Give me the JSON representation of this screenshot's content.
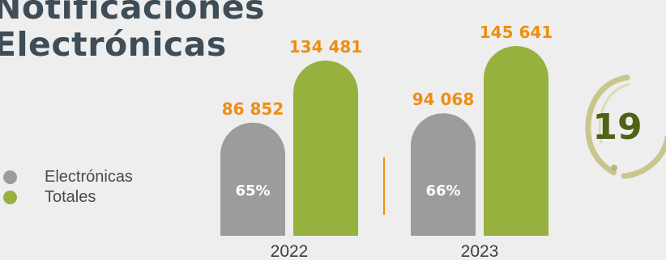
{
  "title": {
    "line1": "Notificaciones",
    "line2": "Electrónicas"
  },
  "colors": {
    "title": "#3e4d57",
    "electronicas": "#9d9c9d",
    "totales": "#97b13e",
    "value_label": "#ef8d12",
    "separator": "#ef8d12",
    "badge_ring": "#c9c58e",
    "badge_number": "#4f6316"
  },
  "legend": {
    "items": [
      {
        "label": "Electrónicas",
        "color": "#9d9c9d"
      },
      {
        "label": "Totales",
        "color": "#97b13e"
      }
    ]
  },
  "badge": {
    "number": "19",
    "icon": "laurel-ring-icon"
  },
  "chart_data": {
    "type": "bar",
    "categories": [
      "2022",
      "2023"
    ],
    "series": [
      {
        "name": "Electrónicas",
        "values": [
          86852,
          94068
        ],
        "value_labels": [
          "86 852",
          "94 068"
        ],
        "percent_labels": [
          "65%",
          "66%"
        ],
        "color": "#9d9c9d"
      },
      {
        "name": "Totales",
        "values": [
          134481,
          145641
        ],
        "value_labels": [
          "134 481",
          "145 641"
        ],
        "color": "#97b13e"
      }
    ],
    "title": "Notificaciones Electrónicas",
    "xlabel": "",
    "ylabel": "",
    "ylim": [
      0,
      145641
    ],
    "grid": false,
    "legend_position": "left"
  }
}
